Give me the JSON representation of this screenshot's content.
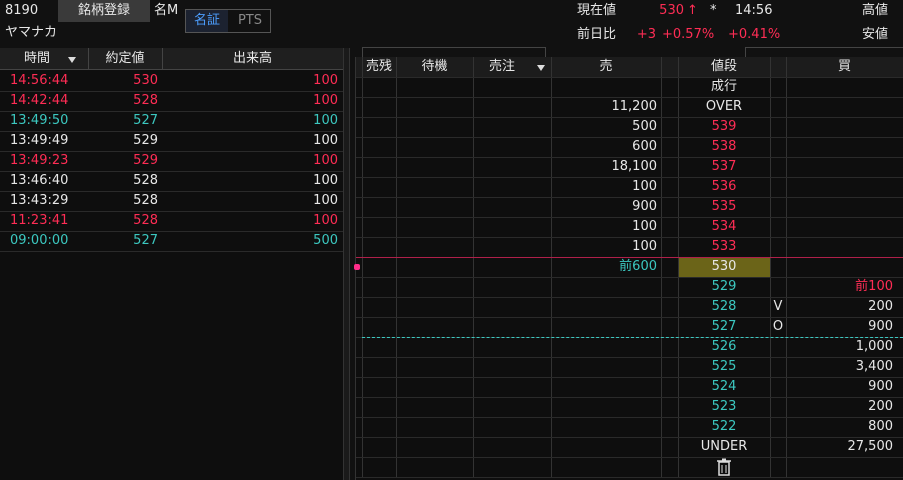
{
  "header": {
    "code": "8190",
    "register_button": "銘柄登録",
    "market_code": "名M",
    "tabs": [
      "名証",
      "PTS"
    ],
    "name": "ヤマナカ"
  },
  "quote": {
    "current_label": "現在値",
    "current_price": "530",
    "arrow": "↑",
    "flag": "*",
    "time": "14:56",
    "high_label": "高値",
    "change_label": "前日比",
    "change": "+3",
    "change_pct": "+0.57%",
    "other_pct": "+0.41%",
    "low_label": "安値"
  },
  "trades": {
    "columns": [
      "時間",
      "約定値",
      "出来高"
    ],
    "rows": [
      {
        "time": "14:56:44",
        "price": "530",
        "volume": "100",
        "color": "#ff2d55"
      },
      {
        "time": "14:42:44",
        "price": "528",
        "volume": "100",
        "color": "#ff2d55"
      },
      {
        "time": "13:49:50",
        "price": "527",
        "volume": "100",
        "color": "#3cc8c0"
      },
      {
        "time": "13:49:49",
        "price": "529",
        "volume": "100",
        "color": "#e8e8e8"
      },
      {
        "time": "13:49:23",
        "price": "529",
        "volume": "100",
        "color": "#ff2d55"
      },
      {
        "time": "13:46:40",
        "price": "528",
        "volume": "100",
        "color": "#e8e8e8"
      },
      {
        "time": "13:43:29",
        "price": "528",
        "volume": "100",
        "color": "#e8e8e8"
      },
      {
        "time": "11:23:41",
        "price": "528",
        "volume": "100",
        "color": "#ff2d55"
      },
      {
        "time": "09:00:00",
        "price": "527",
        "volume": "500",
        "color": "#3cc8c0"
      }
    ]
  },
  "board": {
    "columns": [
      "売残",
      "待機",
      "売注",
      "売",
      "値段",
      "買"
    ],
    "rows": [
      {
        "price": "成行",
        "color": "#e8e8e8"
      },
      {
        "sell": "11,200",
        "price": "OVER",
        "color": "#e8e8e8"
      },
      {
        "sell": "500",
        "price": "539",
        "color": "#ff2d55"
      },
      {
        "sell": "600",
        "price": "538",
        "color": "#ff2d55"
      },
      {
        "sell": "18,100",
        "price": "537",
        "color": "#ff2d55"
      },
      {
        "sell": "100",
        "price": "536",
        "color": "#ff2d55"
      },
      {
        "sell": "900",
        "price": "535",
        "color": "#ff2d55"
      },
      {
        "sell": "100",
        "price": "534",
        "color": "#ff2d55"
      },
      {
        "sell": "100",
        "price": "533",
        "color": "#ff2d55"
      },
      {
        "sell": "前600",
        "sell_color": "#3cc8c0",
        "price": "530",
        "color": "#e8e8e8"
      },
      {
        "price": "529",
        "color": "#3cc8c0",
        "buy": "前100",
        "buy_color": "#ff2d55"
      },
      {
        "price": "528",
        "color": "#3cc8c0",
        "flag": "V",
        "buy": "200"
      },
      {
        "price": "527",
        "color": "#3cc8c0",
        "flag": "O",
        "buy": "900"
      },
      {
        "price": "526",
        "color": "#3cc8c0",
        "buy": "1,000"
      },
      {
        "price": "525",
        "color": "#3cc8c0",
        "buy": "3,400"
      },
      {
        "price": "524",
        "color": "#3cc8c0",
        "buy": "900"
      },
      {
        "price": "523",
        "color": "#3cc8c0",
        "buy": "200"
      },
      {
        "price": "522",
        "color": "#3cc8c0",
        "buy": "800"
      },
      {
        "price": "UNDER",
        "color": "#e8e8e8",
        "buy": "27,500"
      }
    ]
  }
}
